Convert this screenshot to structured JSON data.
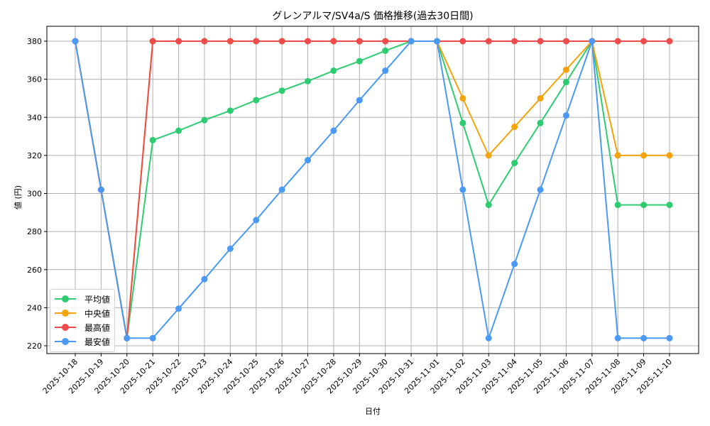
{
  "chart_data": {
    "type": "line",
    "title": "グレンアルマ/SV4a/S 価格推移(過去30日間)",
    "xlabel": "日付",
    "ylabel": "値 (円)",
    "ylim": [
      216,
      388
    ],
    "yticks": [
      220,
      240,
      260,
      280,
      300,
      320,
      340,
      360,
      380
    ],
    "grid": true,
    "legend_position": "lower left",
    "x": [
      "2025-10-18",
      "2025-10-19",
      "2025-10-20",
      "2025-10-21",
      "2025-10-22",
      "2025-10-23",
      "2025-10-24",
      "2025-10-25",
      "2025-10-26",
      "2025-10-27",
      "2025-10-28",
      "2025-10-29",
      "2025-10-30",
      "2025-10-31",
      "2025-11-01",
      "2025-11-02",
      "2025-11-03",
      "2025-11-04",
      "2025-11-05",
      "2025-11-06",
      "2025-11-07",
      "2025-11-08",
      "2025-11-09",
      "2025-11-10"
    ],
    "series": [
      {
        "name": "平均値",
        "color": "#2ecc71",
        "values": [
          380,
          302,
          224,
          328,
          333,
          338.5,
          343.5,
          349,
          354,
          359,
          364.5,
          369.5,
          375,
          380,
          380,
          337,
          294,
          316,
          337,
          358.5,
          380,
          294,
          294,
          294
        ]
      },
      {
        "name": "中央値",
        "color": "#f5a30a",
        "values": [
          380,
          302,
          224,
          380,
          380,
          380,
          380,
          380,
          380,
          380,
          380,
          380,
          380,
          380,
          380,
          350,
          320,
          335,
          350,
          365,
          380,
          320,
          320,
          320
        ]
      },
      {
        "name": "最高値",
        "color": "#f04b4b",
        "values": [
          380,
          302,
          224,
          380,
          380,
          380,
          380,
          380,
          380,
          380,
          380,
          380,
          380,
          380,
          380,
          380,
          380,
          380,
          380,
          380,
          380,
          380,
          380,
          380
        ]
      },
      {
        "name": "最安値",
        "color": "#4a9af5",
        "values": [
          380,
          302,
          224,
          224,
          239.5,
          255,
          271,
          286,
          302,
          317.5,
          333,
          349,
          364.5,
          380,
          380,
          302,
          224,
          263,
          302,
          341,
          380,
          224,
          224,
          224
        ]
      }
    ]
  },
  "legend": {
    "items": [
      {
        "label": "平均値",
        "color": "#2ecc71"
      },
      {
        "label": "中央値",
        "color": "#f5a30a"
      },
      {
        "label": "最高値",
        "color": "#f04b4b"
      },
      {
        "label": "最安値",
        "color": "#4a9af5"
      }
    ]
  }
}
